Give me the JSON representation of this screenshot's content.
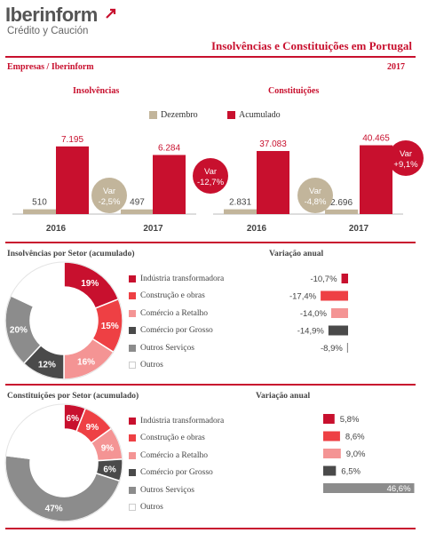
{
  "header": {
    "logo_name": "Iberinform",
    "logo_subtitle": "Crédito y Caución",
    "title": "Insolvências e Constituições em Portugal",
    "subtitle": "Empresas / Iberinform",
    "year": "2017"
  },
  "colors": {
    "accent": "#c8102e",
    "beige": "#c2b59b",
    "light_red": "#ee4044",
    "pink": "#f49494",
    "dark_gray": "#4a4a4a",
    "gray": "#8c8c8c"
  },
  "chart_data": [
    {
      "type": "bar",
      "title": "Insolvências",
      "categories": [
        "2016",
        "2017"
      ],
      "series": [
        {
          "name": "Dezembro",
          "values": [
            510,
            497
          ],
          "labels": [
            "510",
            "497"
          ]
        },
        {
          "name": "Acumulado",
          "values": [
            7195,
            6284
          ],
          "labels": [
            "7.195",
            "6.284"
          ]
        }
      ],
      "annotations": [
        {
          "label": "Var",
          "value": "-2,5%",
          "series": "Dezembro"
        },
        {
          "label": "Var",
          "value": "-12,7%",
          "series": "Acumulado"
        }
      ],
      "ylim": [
        0,
        8500
      ]
    },
    {
      "type": "bar",
      "title": "Constituições",
      "categories": [
        "2016",
        "2017"
      ],
      "series": [
        {
          "name": "Dezembro",
          "values": [
            2831,
            2696
          ],
          "labels": [
            "2.831",
            "2.696"
          ]
        },
        {
          "name": "Acumulado",
          "values": [
            37083,
            40465
          ],
          "labels": [
            "37.083",
            "40.465"
          ]
        }
      ],
      "annotations": [
        {
          "label": "Var",
          "value": "-4,8%",
          "series": "Dezembro"
        },
        {
          "label": "Var",
          "value": "+9,1%",
          "series": "Acumulado"
        }
      ],
      "ylim": [
        0,
        47000
      ]
    },
    {
      "type": "pie",
      "title": "Insolvências por Setor (acumulado)",
      "slices": [
        {
          "name": "Indústria transformadora",
          "value": 19,
          "label": "19%",
          "color": "#c8102e"
        },
        {
          "name": "Construção e obras",
          "value": 15,
          "label": "15%",
          "color": "#ee4044"
        },
        {
          "name": "Comércio a Retalho",
          "value": 16,
          "label": "16%",
          "color": "#f49494"
        },
        {
          "name": "Comércio por Grosso",
          "value": 12,
          "label": "12%",
          "color": "#4a4a4a"
        },
        {
          "name": "Outros Serviços",
          "value": 20,
          "label": "20%",
          "color": "#8c8c8c"
        },
        {
          "name": "Outros",
          "value": 18,
          "label": "",
          "color": "#ffffff"
        }
      ]
    },
    {
      "type": "bar",
      "title": "Variação anual",
      "categories": [
        "Indústria transformadora",
        "Construção e obras",
        "Comércio a Retalho",
        "Comércio por Grosso",
        "Outros Serviços"
      ],
      "values": [
        -10.7,
        -17.4,
        -14.0,
        -14.9,
        -8.9
      ],
      "labels": [
        "-10,7%",
        "-17,4%",
        "-14,0%",
        "-14,9%",
        "-8,9%"
      ],
      "colors": [
        "#c8102e",
        "#ee4044",
        "#f49494",
        "#4a4a4a",
        "#8c8c8c"
      ],
      "xlim": [
        -20,
        0
      ]
    },
    {
      "type": "pie",
      "title": "Constituições por Setor (acumulado)",
      "slices": [
        {
          "name": "Indústria transformadora",
          "value": 6,
          "label": "6%",
          "color": "#c8102e"
        },
        {
          "name": "Construção e obras",
          "value": 9,
          "label": "9%",
          "color": "#ee4044"
        },
        {
          "name": "Comércio a Retalho",
          "value": 9,
          "label": "9%",
          "color": "#f49494"
        },
        {
          "name": "Comércio por Grosso",
          "value": 6,
          "label": "6%",
          "color": "#4a4a4a"
        },
        {
          "name": "Outros Serviços",
          "value": 47,
          "label": "47%",
          "color": "#8c8c8c"
        },
        {
          "name": "Outros",
          "value": 23,
          "label": "",
          "color": "#ffffff"
        }
      ]
    },
    {
      "type": "bar",
      "title": "Variação anual",
      "categories": [
        "Indústria transformadora",
        "Construção e obras",
        "Comércio a Retalho",
        "Comércio por Grosso",
        "Outros Serviços"
      ],
      "values": [
        5.8,
        8.6,
        9.0,
        6.5,
        46.6
      ],
      "labels": [
        "5,8%",
        "8,6%",
        "9,0%",
        "6,5%",
        "46,6%"
      ],
      "colors": [
        "#c8102e",
        "#ee4044",
        "#f49494",
        "#4a4a4a",
        "#8c8c8c"
      ],
      "xlim": [
        0,
        50
      ]
    }
  ],
  "sectors": [
    "Indústria transformadora",
    "Construção e obras",
    "Comércio a Retalho",
    "Comércio por Grosso",
    "Outros Serviços",
    "Outros"
  ],
  "legend": {
    "dec": "Dezembro",
    "acc": "Acumulado"
  }
}
